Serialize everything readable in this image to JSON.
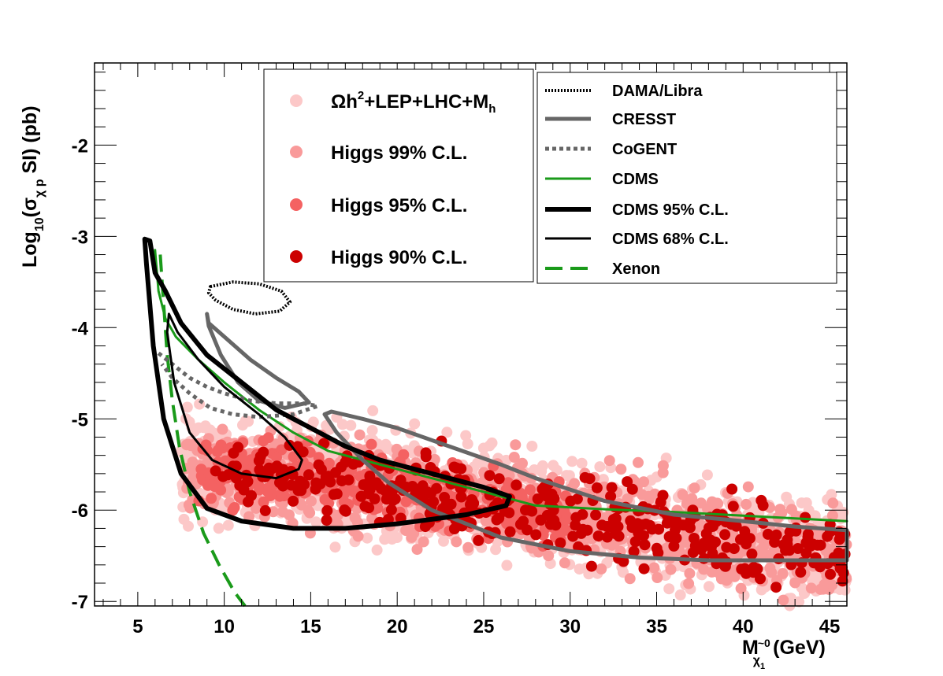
{
  "chart_data": {
    "type": "scatter",
    "title": "",
    "xlabel": {
      "main": "M",
      "sub_tilde": "~0",
      "sub": "χ",
      "sub2": "1",
      "unit": "(GeV)"
    },
    "ylabel": {
      "pre": "Log",
      "sub": "10",
      "mid": "(σ",
      "sub2": "χ p",
      "post": " SI) (pb)"
    },
    "xlim": [
      2.5,
      46
    ],
    "ylim": [
      -7.05,
      -1.1
    ],
    "xticks": [
      5,
      10,
      15,
      20,
      25,
      30,
      35,
      40,
      45
    ],
    "xtick_labels": [
      "5",
      "10",
      "15",
      "20",
      "25",
      "30",
      "35",
      "40",
      "45"
    ],
    "yticks": [
      -7,
      -6,
      -5,
      -4,
      -3,
      -2
    ],
    "ytick_labels": [
      "-7",
      "-6",
      "-5",
      "-4",
      "-3",
      "-2"
    ],
    "scatter_legend": [
      {
        "key": "omega",
        "label_main": "Ωh",
        "label_sup": "2",
        "label_rest": "+LEP+LHC+M",
        "label_sub": "h",
        "color": "#fcc8c8"
      },
      {
        "key": "h99",
        "label": "Higgs 99% C.L.",
        "color": "#f99a9a"
      },
      {
        "key": "h95",
        "label": "Higgs 95% C.L.",
        "color": "#f46262"
      },
      {
        "key": "h90",
        "label": "Higgs 90% C.L.",
        "color": "#cc0000"
      }
    ],
    "line_legend": [
      {
        "key": "dama",
        "label": "DAMA/Libra",
        "color": "#000000",
        "style": "dotted-thin"
      },
      {
        "key": "cresst",
        "label": "CRESST",
        "color": "#666666",
        "style": "solid-thick"
      },
      {
        "key": "cogent",
        "label": "CoGENT",
        "color": "#666666",
        "style": "dotted-thick"
      },
      {
        "key": "cdms",
        "label": "CDMS",
        "color": "#1a9a1a",
        "style": "solid"
      },
      {
        "key": "cdms95",
        "label": "CDMS 95% C.L.",
        "color": "#000000",
        "style": "solid-thick"
      },
      {
        "key": "cdms68",
        "label": "CDMS 68% C.L.",
        "color": "#000000",
        "style": "solid"
      },
      {
        "key": "xenon",
        "label": "Xenon",
        "color": "#1a9a1a",
        "style": "dashed"
      }
    ],
    "curves": {
      "cdms": [
        [
          6.0,
          -3.15
        ],
        [
          6.2,
          -3.6
        ],
        [
          6.6,
          -3.9
        ],
        [
          7.2,
          -4.1
        ],
        [
          8.5,
          -4.35
        ],
        [
          10,
          -4.6
        ],
        [
          12,
          -4.9
        ],
        [
          14,
          -5.15
        ],
        [
          16,
          -5.35
        ],
        [
          18,
          -5.45
        ],
        [
          20,
          -5.55
        ],
        [
          23,
          -5.7
        ],
        [
          26,
          -5.85
        ],
        [
          28,
          -5.95
        ],
        [
          32,
          -5.99
        ],
        [
          36,
          -6.02
        ],
        [
          40,
          -6.06
        ],
        [
          43,
          -6.09
        ],
        [
          46,
          -6.12
        ]
      ],
      "xenon": [
        [
          6.3,
          -3.2
        ],
        [
          6.5,
          -3.75
        ],
        [
          6.7,
          -4.3
        ],
        [
          7.0,
          -4.8
        ],
        [
          7.4,
          -5.3
        ],
        [
          8.0,
          -5.8
        ],
        [
          8.8,
          -6.25
        ],
        [
          9.7,
          -6.6
        ],
        [
          10.6,
          -6.9
        ],
        [
          11.2,
          -7.05
        ]
      ],
      "cdms95": [
        [
          5.4,
          -3.03
        ],
        [
          5.7,
          -3.05
        ],
        [
          6.0,
          -3.4
        ],
        [
          6.6,
          -3.6
        ],
        [
          7.5,
          -3.95
        ],
        [
          9,
          -4.3
        ],
        [
          11,
          -4.6
        ],
        [
          13,
          -4.9
        ],
        [
          15,
          -5.1
        ],
        [
          17,
          -5.3
        ],
        [
          19,
          -5.45
        ],
        [
          21,
          -5.55
        ],
        [
          23,
          -5.65
        ],
        [
          25,
          -5.75
        ],
        [
          26.5,
          -5.85
        ],
        [
          26.3,
          -5.95
        ],
        [
          24,
          -6.05
        ],
        [
          20,
          -6.15
        ],
        [
          17,
          -6.2
        ],
        [
          14,
          -6.2
        ],
        [
          11,
          -6.12
        ],
        [
          9,
          -5.98
        ],
        [
          7.5,
          -5.6
        ],
        [
          6.5,
          -5.0
        ],
        [
          5.9,
          -4.2
        ],
        [
          5.5,
          -3.3
        ],
        [
          5.4,
          -3.03
        ]
      ],
      "cdms68": [
        [
          6.8,
          -3.85
        ],
        [
          7.3,
          -4.05
        ],
        [
          8.5,
          -4.35
        ],
        [
          10,
          -4.65
        ],
        [
          12,
          -4.95
        ],
        [
          13.5,
          -5.2
        ],
        [
          14.5,
          -5.45
        ],
        [
          14.3,
          -5.55
        ],
        [
          13,
          -5.65
        ],
        [
          11,
          -5.6
        ],
        [
          9.3,
          -5.45
        ],
        [
          8,
          -5.15
        ],
        [
          7.1,
          -4.6
        ],
        [
          6.7,
          -4.05
        ],
        [
          6.8,
          -3.85
        ]
      ],
      "cresst_small": [
        [
          9.0,
          -3.85
        ],
        [
          9.1,
          -3.95
        ],
        [
          10,
          -4.1
        ],
        [
          11.5,
          -4.35
        ],
        [
          13,
          -4.55
        ],
        [
          14.3,
          -4.7
        ],
        [
          14.9,
          -4.82
        ],
        [
          13.5,
          -4.88
        ],
        [
          12,
          -4.8
        ],
        [
          10.8,
          -4.6
        ],
        [
          9.8,
          -4.3
        ],
        [
          9.1,
          -3.98
        ],
        [
          9.0,
          -3.85
        ]
      ],
      "cresst_big": [
        [
          15.8,
          -4.95
        ],
        [
          16.2,
          -4.92
        ],
        [
          18,
          -5.0
        ],
        [
          20,
          -5.1
        ],
        [
          23,
          -5.3
        ],
        [
          26,
          -5.5
        ],
        [
          28,
          -5.65
        ],
        [
          32,
          -5.9
        ],
        [
          36,
          -6.05
        ],
        [
          40,
          -6.12
        ],
        [
          43,
          -6.18
        ],
        [
          46,
          -6.22
        ],
        [
          46,
          -6.55
        ],
        [
          42,
          -6.55
        ],
        [
          38,
          -6.55
        ],
        [
          34,
          -6.52
        ],
        [
          30,
          -6.45
        ],
        [
          26,
          -6.3
        ],
        [
          22,
          -6.0
        ],
        [
          19.5,
          -5.7
        ],
        [
          18,
          -5.45
        ],
        [
          16.5,
          -5.15
        ],
        [
          15.8,
          -4.95
        ]
      ],
      "cogent": [
        [
          6.2,
          -4.28
        ],
        [
          7,
          -4.4
        ],
        [
          8,
          -4.55
        ],
        [
          9,
          -4.65
        ],
        [
          10,
          -4.72
        ],
        [
          11.5,
          -4.8
        ],
        [
          13,
          -4.83
        ],
        [
          14.6,
          -4.83
        ],
        [
          15.4,
          -4.86
        ],
        [
          14,
          -4.95
        ],
        [
          12,
          -4.98
        ],
        [
          10.5,
          -4.95
        ],
        [
          9.2,
          -4.88
        ],
        [
          8.0,
          -4.72
        ],
        [
          7.0,
          -4.55
        ],
        [
          6.4,
          -4.4
        ]
      ],
      "dama": [
        [
          9.2,
          -3.55
        ],
        [
          10.5,
          -3.5
        ],
        [
          12,
          -3.52
        ],
        [
          13.3,
          -3.6
        ],
        [
          13.8,
          -3.72
        ],
        [
          13.2,
          -3.82
        ],
        [
          11.8,
          -3.85
        ],
        [
          10.5,
          -3.8
        ],
        [
          9.5,
          -3.7
        ],
        [
          9.1,
          -3.62
        ],
        [
          9.2,
          -3.55
        ]
      ]
    }
  }
}
